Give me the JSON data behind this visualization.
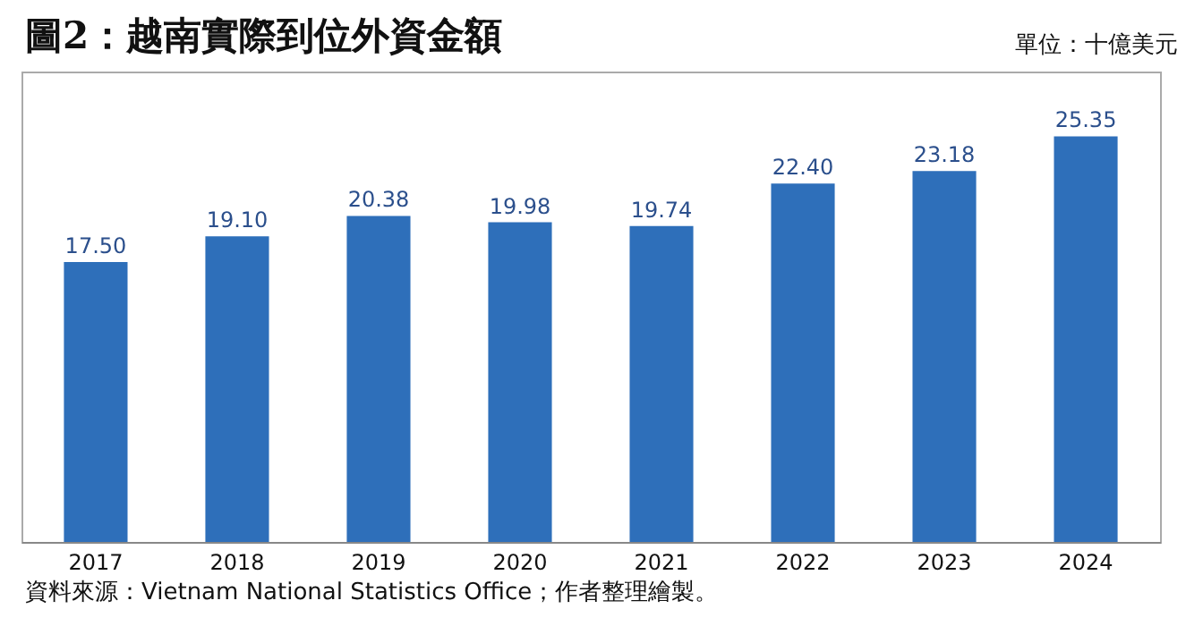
{
  "chart_data": {
    "type": "bar",
    "title": "圖2：越南實際到位外資金額",
    "categories": [
      "2017",
      "2018",
      "2019",
      "2020",
      "2021",
      "2022",
      "2023",
      "2024"
    ],
    "values": [
      17.5,
      19.1,
      20.38,
      19.98,
      19.74,
      22.4,
      23.18,
      25.35
    ],
    "value_labels": [
      "17.50",
      "19.10",
      "20.38",
      "19.98",
      "19.74",
      "22.40",
      "23.18",
      "25.35"
    ],
    "color": "#2e6fba",
    "ylim": [
      0,
      29.4
    ],
    "annotations": [
      "單位：十億美元",
      "資料來源：Vietnam National Statistics Office；作者整理繪製。"
    ]
  }
}
